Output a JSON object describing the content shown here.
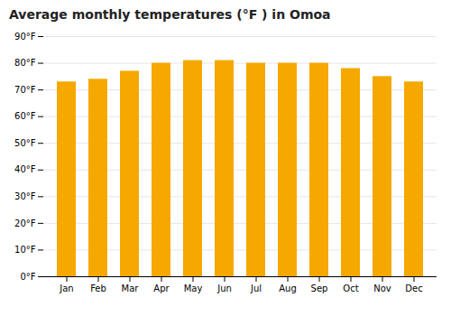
{
  "chart_data": {
    "type": "bar",
    "title": "Average monthly temperatures (°F ) in Omoa",
    "categories": [
      "Jan",
      "Feb",
      "Mar",
      "Apr",
      "May",
      "Jun",
      "Jul",
      "Aug",
      "Sep",
      "Oct",
      "Nov",
      "Dec"
    ],
    "values": [
      73,
      74,
      77,
      80,
      81,
      81,
      80,
      80,
      80,
      78,
      75,
      73
    ],
    "color": "#F5A800",
    "ylim": [
      0,
      90
    ],
    "yticks": [
      {
        "value": 0,
        "label": "0°F"
      },
      {
        "value": 10,
        "label": "10°F"
      },
      {
        "value": 20,
        "label": "20°F"
      },
      {
        "value": 30,
        "label": "30°F"
      },
      {
        "value": 40,
        "label": "40°F"
      },
      {
        "value": 50,
        "label": "50°F"
      },
      {
        "value": 60,
        "label": "60°F"
      },
      {
        "value": 70,
        "label": "70°F"
      },
      {
        "value": 80,
        "label": "80°F"
      },
      {
        "value": 90,
        "label": "90°F"
      }
    ],
    "grid": true
  }
}
